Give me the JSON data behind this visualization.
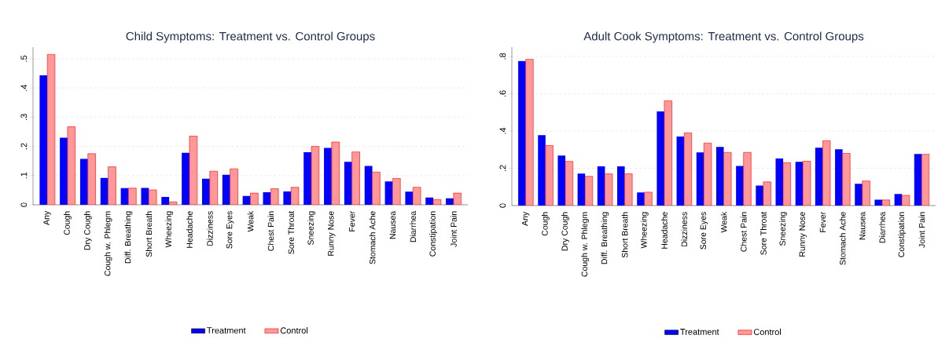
{
  "chart_data": [
    {
      "type": "bar",
      "title": "Child Symptoms: Treatment vs. Control Groups",
      "categories": [
        "Any",
        "Cough",
        "Dry Cough",
        "Cough w. Phlegm",
        "Diff. Breathing",
        "Short Breath",
        "Wheezing",
        "Headache",
        "Dizziness",
        "Sore Eyes",
        "Weak",
        "Chest Pain",
        "Sore Throat",
        "Sneezing",
        "Runny Nose",
        "Fever",
        "Stomach Ache",
        "Nausea",
        "Diarrhea",
        "Constipation",
        "Joint Pain"
      ],
      "series": [
        {
          "name": "Treatment",
          "color": "#0000ff",
          "values": [
            0.443,
            0.23,
            0.157,
            0.092,
            0.057,
            0.058,
            0.027,
            0.178,
            0.089,
            0.103,
            0.03,
            0.043,
            0.046,
            0.18,
            0.195,
            0.147,
            0.133,
            0.08,
            0.045,
            0.025,
            0.022
          ]
        },
        {
          "name": "Control",
          "color": "#ff9999",
          "values": [
            0.515,
            0.267,
            0.175,
            0.13,
            0.057,
            0.051,
            0.01,
            0.235,
            0.115,
            0.123,
            0.04,
            0.055,
            0.06,
            0.2,
            0.215,
            0.181,
            0.112,
            0.09,
            0.06,
            0.018,
            0.04
          ]
        }
      ],
      "ylim": [
        0,
        0.54
      ],
      "yticks": [
        0,
        {
          "value": 0.1,
          "label": ".1"
        },
        {
          "value": 0.2,
          "label": ".2"
        },
        {
          "value": 0.3,
          "label": ".3"
        },
        {
          "value": 0.4,
          "label": ".4"
        },
        {
          "value": 0.5,
          "label": ".5"
        }
      ],
      "grid": "y",
      "legend": "bottom"
    },
    {
      "type": "bar",
      "title": "Adult Cook Symptoms: Treatment vs. Control Groups",
      "categories": [
        "Any",
        "Cough",
        "Dry Cough",
        "Cough w. Phlegm",
        "Diff. Breathing",
        "Short Breath",
        "Wheezing",
        "Headache",
        "Dizziness",
        "Sore Eyes",
        "Weak",
        "Chest Pain",
        "Sore Throat",
        "Sneezing",
        "Runny Nose",
        "Fever",
        "Stomach Ache",
        "Nausea",
        "Diarrhea",
        "Constipation",
        "Joint Pain"
      ],
      "series": [
        {
          "name": "Treatment",
          "color": "#0000ff",
          "values": [
            0.775,
            0.378,
            0.268,
            0.172,
            0.21,
            0.21,
            0.07,
            0.505,
            0.37,
            0.285,
            0.315,
            0.213,
            0.107,
            0.252,
            0.235,
            0.31,
            0.302,
            0.117,
            0.032,
            0.062,
            0.277
          ]
        },
        {
          "name": "Control",
          "color": "#ff9999",
          "values": [
            0.785,
            0.322,
            0.237,
            0.157,
            0.17,
            0.17,
            0.072,
            0.562,
            0.39,
            0.335,
            0.285,
            0.285,
            0.127,
            0.23,
            0.238,
            0.348,
            0.28,
            0.132,
            0.03,
            0.055,
            0.275
          ]
        }
      ],
      "ylim": [
        0,
        0.85
      ],
      "yticks": [
        0,
        {
          "value": 0.2,
          "label": ".2"
        },
        {
          "value": 0.4,
          "label": ".4"
        },
        {
          "value": 0.6,
          "label": ".6"
        },
        {
          "value": 0.8,
          "label": ".8"
        }
      ],
      "grid": "y",
      "legend": "bottom"
    }
  ]
}
